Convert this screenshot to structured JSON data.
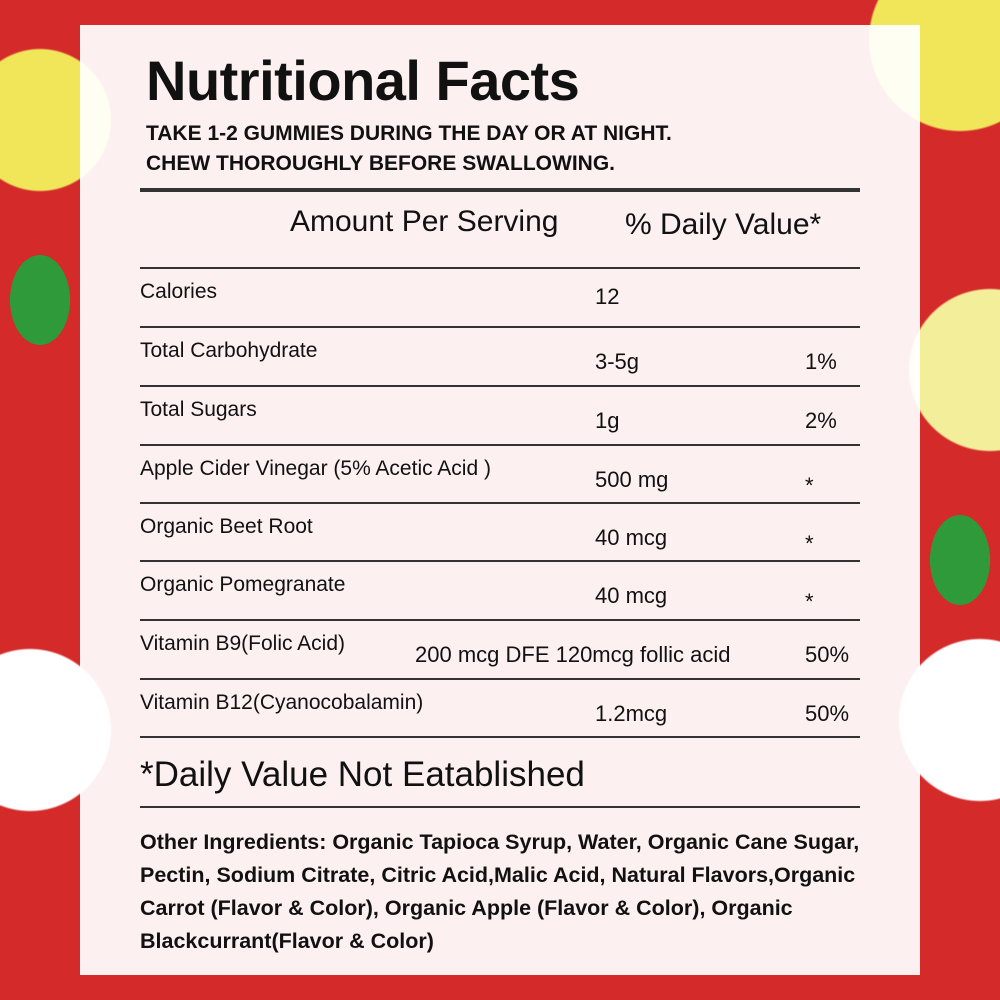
{
  "title": "Nutritional Facts",
  "instructions": [
    "TAKE 1-2 GUMMIES DURING THE DAY OR AT NIGHT.",
    "CHEW THOROUGHLY BEFORE SWALLOWING."
  ],
  "header": {
    "amount": "Amount Per Serving",
    "daily_value": "% Daily Value*"
  },
  "rows": [
    {
      "name": "Calories",
      "amount": "12",
      "dv": ""
    },
    {
      "name": "Total Carbohydrate",
      "amount": "3-5g",
      "dv": "1%"
    },
    {
      "name": "Total Sugars",
      "amount": "1g",
      "dv": "2%"
    },
    {
      "name": "Apple Cider Vinegar (5% Acetic Acid )",
      "amount": "500 mg",
      "dv": "*"
    },
    {
      "name": "Organic Beet Root",
      "amount": "40 mcg",
      "dv": "*"
    },
    {
      "name": "Organic Pomegranate",
      "amount": "40 mcg",
      "dv": "*"
    },
    {
      "name": "Vitamin B9(Folic Acid)",
      "amount": "200 mcg DFE 120mcg follic acid",
      "dv": "50%"
    },
    {
      "name": "Vitamin B12(Cyanocobalamin)",
      "amount": "1.2mcg",
      "dv": "50%"
    }
  ],
  "footnote": "*Daily Value Not Eatablished",
  "other_ingredients": "Other Ingredients: Organic Tapioca Syrup, Water, Organic Cane Sugar, Pectin, Sodium Citrate, Citric Acid,Malic Acid, Natural Flavors,Organic Carrot (Flavor & Color), Organic Apple (Flavor & Color), Organic Blackcurrant(Flavor & Color)"
}
